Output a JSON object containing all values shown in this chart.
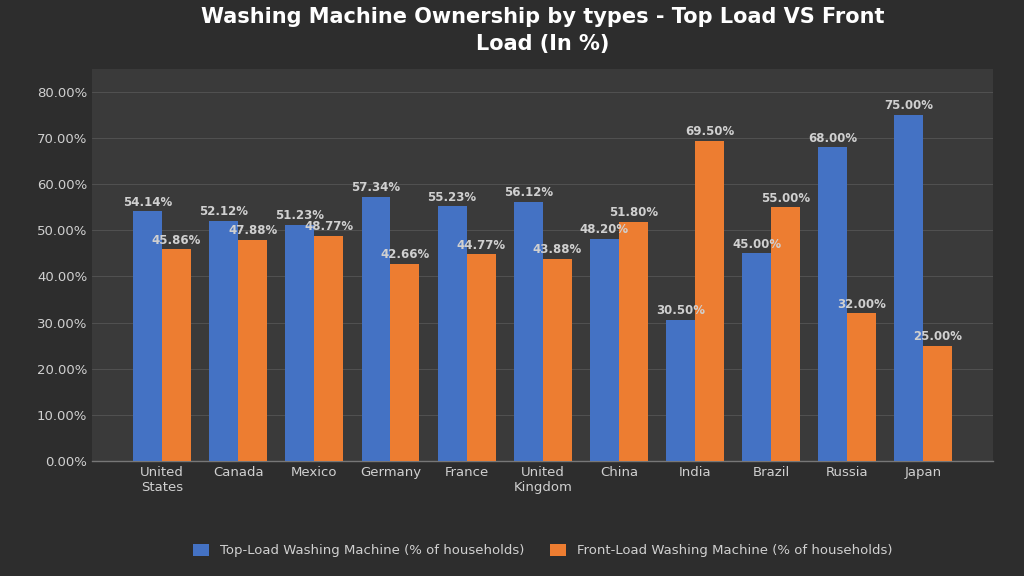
{
  "title": "Washing Machine Ownership by types - Top Load VS Front\nLoad (In %)",
  "categories": [
    "United\nStates",
    "Canada",
    "Mexico",
    "Germany",
    "France",
    "United\nKingdom",
    "China",
    "India",
    "Brazil",
    "Russia",
    "Japan"
  ],
  "top_load": [
    54.14,
    52.12,
    51.23,
    57.34,
    55.23,
    56.12,
    48.2,
    30.5,
    45.0,
    68.0,
    75.0
  ],
  "front_load": [
    45.86,
    47.88,
    48.77,
    42.66,
    44.77,
    43.88,
    51.8,
    69.5,
    55.0,
    32.0,
    25.0
  ],
  "top_load_color": "#4472C4",
  "front_load_color": "#ED7D31",
  "background_color": "#2d2d2d",
  "axes_background_color": "#3a3a3a",
  "grid_color": "#555555",
  "text_color": "#d0d0d0",
  "title_fontsize": 15,
  "label_fontsize": 8.5,
  "tick_fontsize": 9.5,
  "legend_label_top": "Top-Load Washing Machine (% of households)",
  "legend_label_front": "Front-Load Washing Machine (% of households)",
  "ylim": [
    0,
    85
  ],
  "yticks": [
    0,
    10,
    20,
    30,
    40,
    50,
    60,
    70,
    80
  ]
}
